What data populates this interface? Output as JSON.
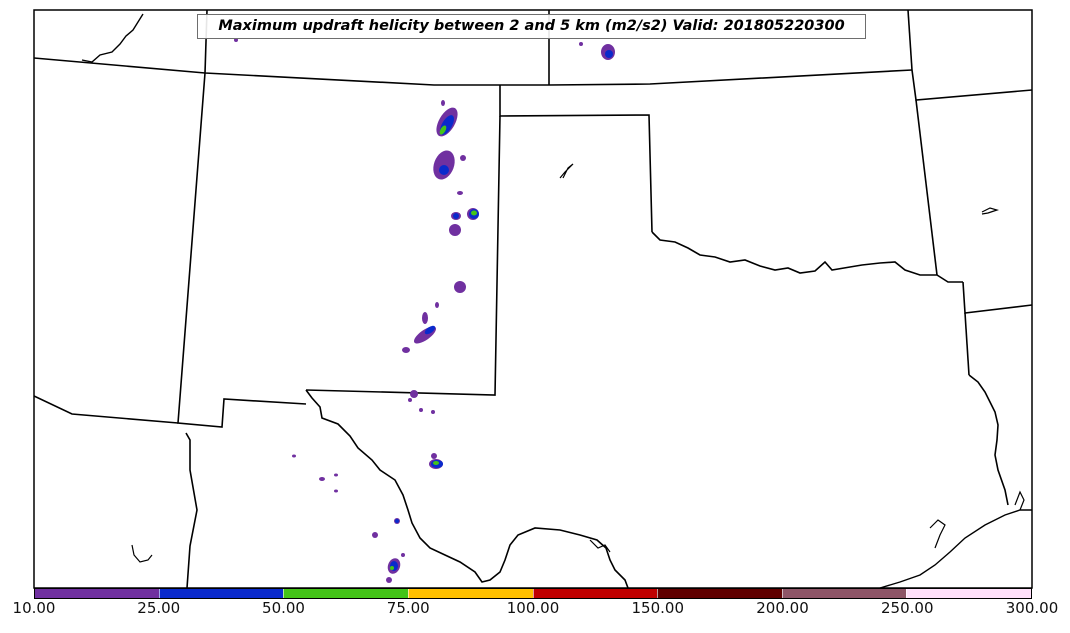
{
  "map": {
    "title": "Maximum updraft helicity between 2 and 5 km (m2/s2) Valid: 201805220300",
    "units": "m2/s2",
    "valid_time": "201805220300"
  },
  "legend": {
    "ticks": [
      "10.00",
      "25.00",
      "50.00",
      "75.00",
      "100.00",
      "150.00",
      "200.00",
      "250.00",
      "300.00"
    ],
    "colors": [
      "#7030a0",
      "#0a2acc",
      "#44c418",
      "#ffc000",
      "#c00000",
      "#600000",
      "#8e5567",
      "#ffe0fa"
    ]
  }
}
